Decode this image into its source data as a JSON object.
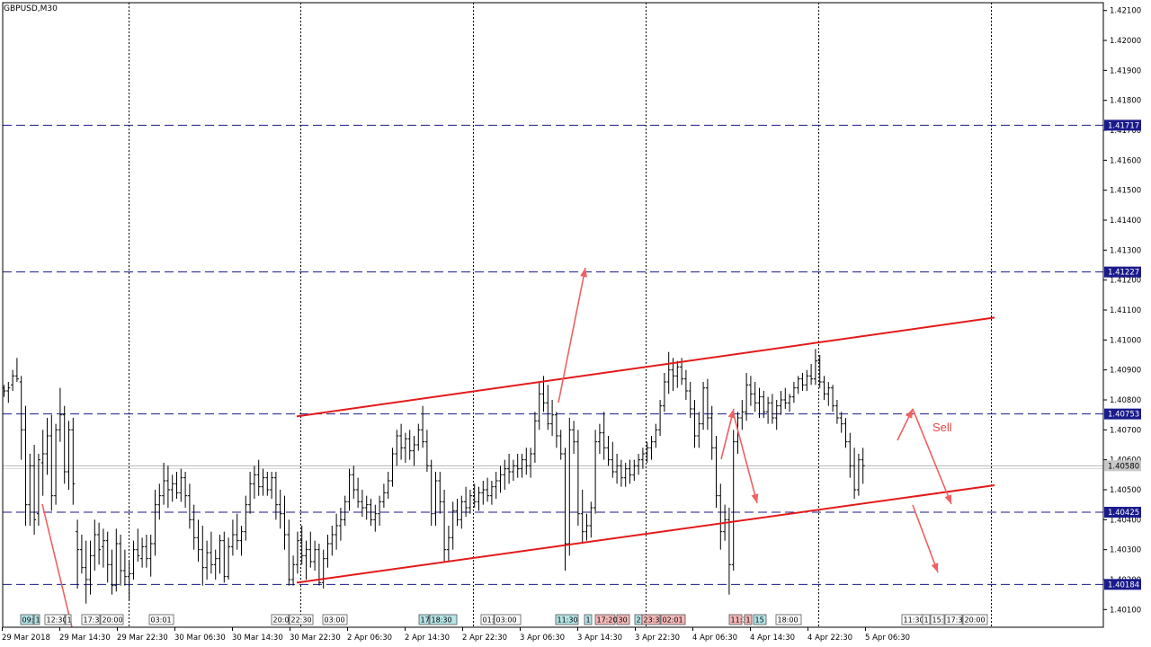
{
  "chart_data": {
    "type": "candlestick",
    "title": "GBPUSD,M30",
    "ylim": [
      1.4004,
      1.4225
    ],
    "y_ticks": [
      "1.42100",
      "1.42000",
      "1.41900",
      "1.41800",
      "1.41700",
      "1.41600",
      "1.41500",
      "1.41400",
      "1.41300",
      "1.41200",
      "1.41100",
      "1.41000",
      "1.40900",
      "1.40800",
      "1.40700",
      "1.40600",
      "1.40500",
      "1.40400",
      "1.40300",
      "1.40200",
      "1.40100"
    ],
    "x_labels": [
      "29 Mar 2018",
      "29 Mar 14:30",
      "29 Mar 22:30",
      "30 Mar 06:30",
      "30 Mar 14:30",
      "30 Mar 22:30",
      "2 Apr 06:30",
      "2 Apr 14:30",
      "2 Apr 22:30",
      "3 Apr 06:30",
      "3 Apr 14:30",
      "3 Apr 22:30",
      "4 Apr 06:30",
      "4 Apr 14:30",
      "4 Apr 22:30",
      "5 Apr 06:30"
    ],
    "current_price": 1.4058,
    "current_price_label": "1.40580",
    "h_levels": [
      {
        "value": 1.41717,
        "label": "1.41717"
      },
      {
        "value": 1.41227,
        "label": "1.41227"
      },
      {
        "value": 1.40753,
        "label": "1.40753"
      },
      {
        "value": 1.40425,
        "label": "1.40425"
      },
      {
        "value": 1.40184,
        "label": "1.40184"
      }
    ],
    "channel_lines": [
      {
        "from": [
          "30 Mar 22:30",
          1.40745
        ],
        "to": [
          "5 Apr 20:00",
          1.41075
        ]
      },
      {
        "from": [
          "30 Mar 22:30",
          1.4019
        ],
        "to": [
          "5 Apr 20:00",
          1.40515
        ]
      }
    ],
    "annotations": [
      {
        "text": "Sell",
        "color": "#e54545"
      }
    ],
    "time_markers": [
      {
        "text": "09:0",
        "bg": "#b6e3e6"
      },
      {
        "text": "1",
        "bg": "#b6e3e6"
      },
      {
        "text": "12:30",
        "bg": "#ffffff"
      },
      {
        "text": "1",
        "bg": "#ffffff"
      },
      {
        "text": "17:3",
        "bg": "#ffffff"
      },
      {
        "text": "20:00",
        "bg": "#ffffff"
      },
      {
        "text": "03:01",
        "bg": "#ffffff"
      },
      {
        "text": "20:0",
        "bg": "#ffffff"
      },
      {
        "text": "22:30",
        "bg": "#ffffff"
      },
      {
        "text": "03:00",
        "bg": "#ffffff"
      },
      {
        "text": "17",
        "bg": "#b6e3e6"
      },
      {
        "text": "18:30",
        "bg": "#b6e3e6"
      },
      {
        "text": "01:",
        "bg": "#ffffff"
      },
      {
        "text": "03:00",
        "bg": "#ffffff"
      },
      {
        "text": "11:30",
        "bg": "#b6e3e6"
      },
      {
        "text": "1",
        "bg": "#b6e3e6"
      },
      {
        "text": "17:20",
        "bg": "#f4b8b8"
      },
      {
        "text": "30",
        "bg": "#f4b8b8"
      },
      {
        "text": "2",
        "bg": "#b6e3e6"
      },
      {
        "text": "23:3",
        "bg": "#f4b8b8"
      },
      {
        "text": "02:01",
        "bg": "#f4b8b8"
      },
      {
        "text": "11:3",
        "bg": "#f4b8b8"
      },
      {
        "text": "1",
        "bg": "#f4b8b8"
      },
      {
        "text": "15",
        "bg": "#b6e3e6"
      },
      {
        "text": "18:00",
        "bg": "#ffffff"
      },
      {
        "text": "11:30",
        "bg": "#ffffff"
      },
      {
        "text": "1",
        "bg": "#ffffff"
      },
      {
        "text": "15:",
        "bg": "#ffffff"
      },
      {
        "text": "17:3",
        "bg": "#ffffff"
      },
      {
        "text": "20:00",
        "bg": "#ffffff"
      }
    ],
    "grid": true,
    "colors": {
      "candles": "#000000",
      "h_levels": "#1a1a8c",
      "h_level_label_bg": "#1a1a8c",
      "channel": "#e31a1a",
      "arrows": "#f06060",
      "current_price": "#b4b4b4"
    },
    "candles": [
      [
        1.4084,
        1.4085,
        1.4081,
        1.4083
      ],
      [
        1.4083,
        1.4086,
        1.4079,
        1.4084
      ],
      [
        1.4085,
        1.409,
        1.4083,
        1.4088
      ],
      [
        1.4088,
        1.4094,
        1.4086,
        1.4087
      ],
      [
        1.4086,
        1.4088,
        1.406,
        1.407
      ],
      [
        1.407,
        1.4078,
        1.4038,
        1.4045
      ],
      [
        1.4045,
        1.4062,
        1.4038,
        1.4058
      ],
      [
        1.4058,
        1.4065,
        1.4035,
        1.404
      ],
      [
        1.4042,
        1.4062,
        1.4038,
        1.406
      ],
      [
        1.4059,
        1.407,
        1.4048,
        1.4062
      ],
      [
        1.4062,
        1.4074,
        1.4055,
        1.4068
      ],
      [
        1.4068,
        1.4075,
        1.4043,
        1.4048
      ],
      [
        1.4048,
        1.4072,
        1.4045,
        1.407
      ],
      [
        1.407,
        1.4084,
        1.4066,
        1.4075
      ],
      [
        1.4075,
        1.4078,
        1.4052,
        1.4056
      ],
      [
        1.4056,
        1.4073,
        1.405,
        1.407
      ],
      [
        1.407,
        1.4074,
        1.4045,
        1.4052
      ],
      [
        1.4036,
        1.404,
        1.4017,
        1.403
      ],
      [
        1.403,
        1.4035,
        1.4022,
        1.4024
      ],
      [
        1.4024,
        1.4033,
        1.4012,
        1.402
      ],
      [
        1.402,
        1.4033,
        1.4015,
        1.4028
      ],
      [
        1.4028,
        1.404,
        1.4023,
        1.4035
      ],
      [
        1.4035,
        1.4039,
        1.4025,
        1.403
      ],
      [
        1.4031,
        1.4037,
        1.4024,
        1.4033
      ],
      [
        1.4033,
        1.4036,
        1.4019,
        1.4025
      ],
      [
        1.4025,
        1.403,
        1.4015,
        1.4018
      ],
      [
        1.4018,
        1.4037,
        1.4016,
        1.4032
      ],
      [
        1.4032,
        1.4035,
        1.4018,
        1.4023
      ],
      [
        1.4023,
        1.403,
        1.4018,
        1.4021
      ],
      [
        1.4021,
        1.4026,
        1.4013,
        1.4022
      ],
      [
        1.4022,
        1.4033,
        1.402,
        1.403
      ],
      [
        1.403,
        1.4037,
        1.4026,
        1.4028
      ],
      [
        1.4027,
        1.4034,
        1.4024,
        1.4031
      ],
      [
        1.4031,
        1.4035,
        1.4024,
        1.4027
      ],
      [
        1.4027,
        1.4035,
        1.4021,
        1.4032
      ],
      [
        1.4032,
        1.405,
        1.4028,
        1.4045
      ],
      [
        1.4045,
        1.4052,
        1.404,
        1.4048
      ],
      [
        1.4048,
        1.4059,
        1.4045,
        1.4053
      ],
      [
        1.4053,
        1.4058,
        1.4044,
        1.405
      ],
      [
        1.405,
        1.4055,
        1.4046,
        1.4052
      ],
      [
        1.4052,
        1.4056,
        1.4047,
        1.4049
      ],
      [
        1.4049,
        1.4057,
        1.4046,
        1.4054
      ],
      [
        1.4054,
        1.4056,
        1.4044,
        1.4048
      ],
      [
        1.4048,
        1.4052,
        1.4037,
        1.404
      ],
      [
        1.404,
        1.4045,
        1.403,
        1.4034
      ],
      [
        1.4034,
        1.404,
        1.4026,
        1.403
      ],
      [
        1.403,
        1.4038,
        1.4018,
        1.4024
      ],
      [
        1.4024,
        1.4033,
        1.402,
        1.4029
      ],
      [
        1.4029,
        1.4036,
        1.4022,
        1.4025
      ],
      [
        1.4025,
        1.403,
        1.402,
        1.4027
      ],
      [
        1.4027,
        1.4035,
        1.4022,
        1.4033
      ],
      [
        1.4033,
        1.4036,
        1.4019,
        1.4021
      ],
      [
        1.4021,
        1.4034,
        1.402,
        1.4031
      ],
      [
        1.4031,
        1.404,
        1.4028,
        1.4035
      ],
      [
        1.4035,
        1.4042,
        1.403,
        1.4033
      ],
      [
        1.4033,
        1.4038,
        1.4028,
        1.4036
      ],
      [
        1.4036,
        1.4048,
        1.4033,
        1.4045
      ],
      [
        1.4045,
        1.4056,
        1.4042,
        1.4052
      ],
      [
        1.4052,
        1.4058,
        1.4047,
        1.4055
      ],
      [
        1.4055,
        1.406,
        1.4048,
        1.4051
      ],
      [
        1.4051,
        1.4057,
        1.4048,
        1.4054
      ],
      [
        1.4054,
        1.4056,
        1.4048,
        1.405
      ],
      [
        1.405,
        1.4056,
        1.4047,
        1.4054
      ],
      [
        1.4054,
        1.4056,
        1.404,
        1.4045
      ],
      [
        1.4045,
        1.405,
        1.4037,
        1.4042
      ],
      [
        1.4042,
        1.4048,
        1.403,
        1.4035
      ],
      [
        1.4035,
        1.404,
        1.4018,
        1.402
      ],
      [
        1.402,
        1.4028,
        1.4018,
        1.4025
      ],
      [
        1.4025,
        1.4036,
        1.4022,
        1.4033
      ],
      [
        1.4033,
        1.4038,
        1.4025,
        1.4028
      ],
      [
        1.4028,
        1.4033,
        1.402,
        1.403
      ],
      [
        1.403,
        1.4036,
        1.4024,
        1.4026
      ],
      [
        1.4026,
        1.4033,
        1.4023,
        1.403
      ],
      [
        1.403,
        1.4032,
        1.4018,
        1.4019
      ],
      [
        1.4019,
        1.403,
        1.4017,
        1.4027
      ],
      [
        1.4027,
        1.4035,
        1.4024,
        1.4032
      ],
      [
        1.4032,
        1.4038,
        1.4028,
        1.4035
      ],
      [
        1.4035,
        1.4042,
        1.403,
        1.4038
      ],
      [
        1.4038,
        1.4044,
        1.4033,
        1.404
      ],
      [
        1.404,
        1.4048,
        1.4038,
        1.4046
      ],
      [
        1.4046,
        1.4057,
        1.4043,
        1.4055
      ],
      [
        1.4055,
        1.4058,
        1.4047,
        1.405
      ],
      [
        1.405,
        1.4054,
        1.4044,
        1.4046
      ],
      [
        1.4046,
        1.405,
        1.4041,
        1.4044
      ],
      [
        1.4044,
        1.4048,
        1.404,
        1.4045
      ],
      [
        1.4045,
        1.4047,
        1.4038,
        1.404
      ],
      [
        1.404,
        1.4045,
        1.4036,
        1.4042
      ],
      [
        1.4042,
        1.4048,
        1.4038,
        1.4046
      ],
      [
        1.4046,
        1.4052,
        1.4044,
        1.4049
      ],
      [
        1.4049,
        1.4056,
        1.4047,
        1.4053
      ],
      [
        1.4053,
        1.4064,
        1.4051,
        1.4062
      ],
      [
        1.4062,
        1.407,
        1.4058,
        1.4068
      ],
      [
        1.4068,
        1.4072,
        1.406,
        1.4064
      ],
      [
        1.4064,
        1.4069,
        1.4059,
        1.4067
      ],
      [
        1.4067,
        1.407,
        1.406,
        1.4063
      ],
      [
        1.4063,
        1.4068,
        1.4058,
        1.4065
      ],
      [
        1.4065,
        1.4072,
        1.4063,
        1.407
      ],
      [
        1.407,
        1.4078,
        1.4064,
        1.4066
      ],
      [
        1.4066,
        1.407,
        1.4056,
        1.4058
      ],
      [
        1.4058,
        1.406,
        1.4038,
        1.4042
      ],
      [
        1.4042,
        1.4056,
        1.4038,
        1.4053
      ],
      [
        1.4053,
        1.4056,
        1.4042,
        1.4046
      ],
      [
        1.4046,
        1.405,
        1.4026,
        1.403
      ],
      [
        1.403,
        1.4038,
        1.4026,
        1.4034
      ],
      [
        1.4034,
        1.4046,
        1.403,
        1.4043
      ],
      [
        1.4043,
        1.4047,
        1.4038,
        1.404
      ],
      [
        1.404,
        1.4048,
        1.4037,
        1.4046
      ],
      [
        1.4046,
        1.4051,
        1.4041,
        1.4044
      ],
      [
        1.4044,
        1.405,
        1.4042,
        1.4048
      ],
      [
        1.4048,
        1.4052,
        1.4044,
        1.4046
      ],
      [
        1.4046,
        1.4051,
        1.4043,
        1.4049
      ],
      [
        1.4049,
        1.4053,
        1.4045,
        1.405
      ],
      [
        1.405,
        1.4054,
        1.4046,
        1.4048
      ],
      [
        1.4048,
        1.4053,
        1.4045,
        1.4051
      ],
      [
        1.4051,
        1.4056,
        1.4047,
        1.4053
      ],
      [
        1.4053,
        1.4058,
        1.4049,
        1.4055
      ],
      [
        1.4055,
        1.406,
        1.405,
        1.4057
      ],
      [
        1.4057,
        1.4062,
        1.4052,
        1.4056
      ],
      [
        1.4056,
        1.406,
        1.4053,
        1.4058
      ],
      [
        1.4058,
        1.4062,
        1.4054,
        1.4057
      ],
      [
        1.4057,
        1.4062,
        1.4054,
        1.406
      ],
      [
        1.406,
        1.4064,
        1.4055,
        1.4058
      ],
      [
        1.4058,
        1.4064,
        1.4054,
        1.4062
      ],
      [
        1.4062,
        1.4076,
        1.4059,
        1.4073
      ],
      [
        1.4073,
        1.4086,
        1.407,
        1.4082
      ],
      [
        1.4082,
        1.4088,
        1.4076,
        1.4079
      ],
      [
        1.4079,
        1.4085,
        1.407,
        1.4072
      ],
      [
        1.4072,
        1.408,
        1.4068,
        1.4075
      ],
      [
        1.4075,
        1.4076,
        1.4064,
        1.4068
      ],
      [
        1.4068,
        1.407,
        1.406,
        1.4062
      ],
      [
        1.4062,
        1.4064,
        1.4023,
        1.4032
      ],
      [
        1.4032,
        1.4074,
        1.4028,
        1.407
      ],
      [
        1.407,
        1.4073,
        1.4062,
        1.4066
      ],
      [
        1.4066,
        1.407,
        1.4038,
        1.4042
      ],
      [
        1.4042,
        1.405,
        1.4032,
        1.4036
      ],
      [
        1.4036,
        1.4042,
        1.4033,
        1.4038
      ],
      [
        1.4038,
        1.4046,
        1.4034,
        1.4044
      ],
      [
        1.4044,
        1.407,
        1.4042,
        1.4066
      ],
      [
        1.4066,
        1.4072,
        1.4062,
        1.4069
      ],
      [
        1.4069,
        1.4076,
        1.406,
        1.4064
      ],
      [
        1.4064,
        1.4068,
        1.4058,
        1.406
      ],
      [
        1.406,
        1.4066,
        1.4054,
        1.4056
      ],
      [
        1.4056,
        1.4062,
        1.4052,
        1.4058
      ],
      [
        1.4058,
        1.406,
        1.4051,
        1.4054
      ],
      [
        1.4054,
        1.4059,
        1.4051,
        1.4057
      ],
      [
        1.4057,
        1.406,
        1.4052,
        1.4055
      ],
      [
        1.4055,
        1.406,
        1.4053,
        1.4058
      ],
      [
        1.4058,
        1.4062,
        1.4055,
        1.406
      ],
      [
        1.406,
        1.4064,
        1.4057,
        1.4062
      ],
      [
        1.4062,
        1.4066,
        1.4059,
        1.4064
      ],
      [
        1.4064,
        1.4068,
        1.406,
        1.4066
      ],
      [
        1.4066,
        1.4072,
        1.4064,
        1.407
      ],
      [
        1.407,
        1.408,
        1.4068,
        1.4078
      ],
      [
        1.4078,
        1.4089,
        1.4076,
        1.4086
      ],
      [
        1.4086,
        1.4096,
        1.4082,
        1.409
      ],
      [
        1.409,
        1.4094,
        1.4083,
        1.4088
      ],
      [
        1.4088,
        1.4093,
        1.4084,
        1.4091
      ],
      [
        1.4091,
        1.4094,
        1.4085,
        1.4087
      ],
      [
        1.4087,
        1.409,
        1.408,
        1.4083
      ],
      [
        1.4083,
        1.4086,
        1.4074,
        1.4077
      ],
      [
        1.4077,
        1.408,
        1.4064,
        1.4068
      ],
      [
        1.4068,
        1.4076,
        1.4064,
        1.4072
      ],
      [
        1.4072,
        1.4086,
        1.407,
        1.4084
      ],
      [
        1.4084,
        1.4087,
        1.407,
        1.4074
      ],
      [
        1.4074,
        1.4078,
        1.406,
        1.4064
      ],
      [
        1.4064,
        1.4068,
        1.4044,
        1.4048
      ],
      [
        1.4048,
        1.4052,
        1.403,
        1.4036
      ],
      [
        1.4036,
        1.4045,
        1.4033,
        1.404
      ],
      [
        1.404,
        1.4044,
        1.4015,
        1.4025
      ],
      [
        1.4025,
        1.407,
        1.4023,
        1.4066
      ],
      [
        1.4066,
        1.4076,
        1.4062,
        1.4074
      ],
      [
        1.4074,
        1.408,
        1.407,
        1.4076
      ],
      [
        1.4076,
        1.4089,
        1.4073,
        1.4085
      ],
      [
        1.4085,
        1.4088,
        1.4078,
        1.4082
      ],
      [
        1.4082,
        1.4086,
        1.4076,
        1.4079
      ],
      [
        1.4079,
        1.4084,
        1.4074,
        1.4081
      ],
      [
        1.4081,
        1.4083,
        1.4074,
        1.4076
      ],
      [
        1.4076,
        1.4081,
        1.4072,
        1.4079
      ],
      [
        1.4079,
        1.4082,
        1.4072,
        1.4074
      ],
      [
        1.4074,
        1.408,
        1.407,
        1.4078
      ],
      [
        1.4078,
        1.4083,
        1.4075,
        1.408
      ],
      [
        1.408,
        1.4084,
        1.4077,
        1.4079
      ],
      [
        1.4079,
        1.4082,
        1.4076,
        1.4081
      ],
      [
        1.4081,
        1.4086,
        1.4079,
        1.4084
      ],
      [
        1.4084,
        1.4088,
        1.4082,
        1.4087
      ],
      [
        1.4087,
        1.4089,
        1.4083,
        1.4085
      ],
      [
        1.4085,
        1.409,
        1.4083,
        1.4088
      ],
      [
        1.4088,
        1.4092,
        1.4085,
        1.4087
      ],
      [
        1.4087,
        1.4097,
        1.4085,
        1.4093
      ],
      [
        1.4093,
        1.4095,
        1.4084,
        1.4086
      ],
      [
        1.4086,
        1.4088,
        1.408,
        1.4082
      ],
      [
        1.4082,
        1.4086,
        1.4078,
        1.4084
      ],
      [
        1.4084,
        1.4085,
        1.4076,
        1.4078
      ],
      [
        1.4078,
        1.408,
        1.4072,
        1.4074
      ],
      [
        1.4074,
        1.4076,
        1.4069,
        1.4072
      ],
      [
        1.4072,
        1.4074,
        1.4064,
        1.4066
      ],
      [
        1.4066,
        1.4069,
        1.4054,
        1.4058
      ],
      [
        1.4058,
        1.4064,
        1.4047,
        1.405
      ],
      [
        1.405,
        1.4062,
        1.4048,
        1.406
      ],
      [
        1.406,
        1.4064,
        1.4052,
        1.4058
      ]
    ]
  }
}
